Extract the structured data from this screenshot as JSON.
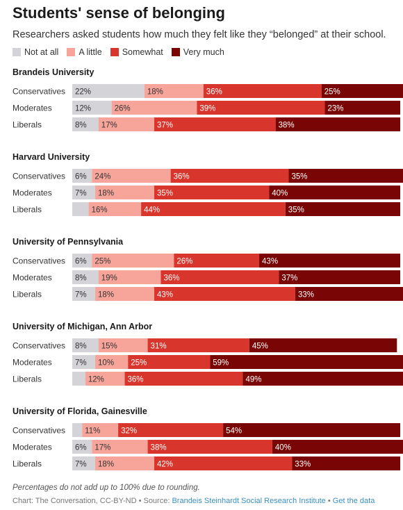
{
  "title": "Students' sense of belonging",
  "subtitle": "Researchers asked students how much they felt like they “belonged” at their school.",
  "colors": {
    "not_at_all": "#d3d3d8",
    "a_little": "#f7a59a",
    "somewhat": "#d8362c",
    "very_much": "#7a0505"
  },
  "chart_data": {
    "type": "bar",
    "orientation": "horizontal-stacked",
    "categories_stacked": [
      "Not at all",
      "A little",
      "Somewhat",
      "Very much"
    ],
    "unit": "%",
    "groups": [
      {
        "name": "Brandeis University",
        "rows": [
          {
            "label": "Conservatives",
            "values": [
              22,
              18,
              36,
              25
            ]
          },
          {
            "label": "Moderates",
            "values": [
              12,
              26,
              39,
              23
            ]
          },
          {
            "label": "Liberals",
            "values": [
              8,
              17,
              37,
              38
            ]
          }
        ]
      },
      {
        "name": "Harvard University",
        "rows": [
          {
            "label": "Conservatives",
            "values": [
              6,
              24,
              36,
              35
            ]
          },
          {
            "label": "Moderates",
            "values": [
              7,
              18,
              35,
              40
            ]
          },
          {
            "label": "Liberals",
            "values": [
              5,
              16,
              44,
              35
            ]
          }
        ]
      },
      {
        "name": "University of Pennsylvania",
        "rows": [
          {
            "label": "Conservatives",
            "values": [
              6,
              25,
              26,
              43
            ]
          },
          {
            "label": "Moderates",
            "values": [
              8,
              19,
              36,
              37
            ]
          },
          {
            "label": "Liberals",
            "values": [
              7,
              18,
              43,
              33
            ]
          }
        ]
      },
      {
        "name": "University of Michigan, Ann Arbor",
        "rows": [
          {
            "label": "Conservatives",
            "values": [
              8,
              15,
              31,
              45
            ]
          },
          {
            "label": "Moderates",
            "values": [
              7,
              10,
              25,
              59
            ]
          },
          {
            "label": "Liberals",
            "values": [
              4,
              12,
              36,
              49
            ]
          }
        ]
      },
      {
        "name": "University of Florida, Gainesville",
        "rows": [
          {
            "label": "Conservatives",
            "values": [
              3,
              11,
              32,
              54
            ]
          },
          {
            "label": "Moderates",
            "values": [
              6,
              17,
              38,
              40
            ]
          },
          {
            "label": "Liberals",
            "values": [
              7,
              18,
              42,
              33
            ]
          }
        ]
      }
    ]
  },
  "note": "Percentages do not add up to 100% due to rounding.",
  "source": {
    "prefix": "Chart: The Conversation, CC-BY-ND • Source: ",
    "org": "Brandeis Steinhardt Social Research Institute",
    "sep": " • ",
    "link": "Get the data"
  }
}
